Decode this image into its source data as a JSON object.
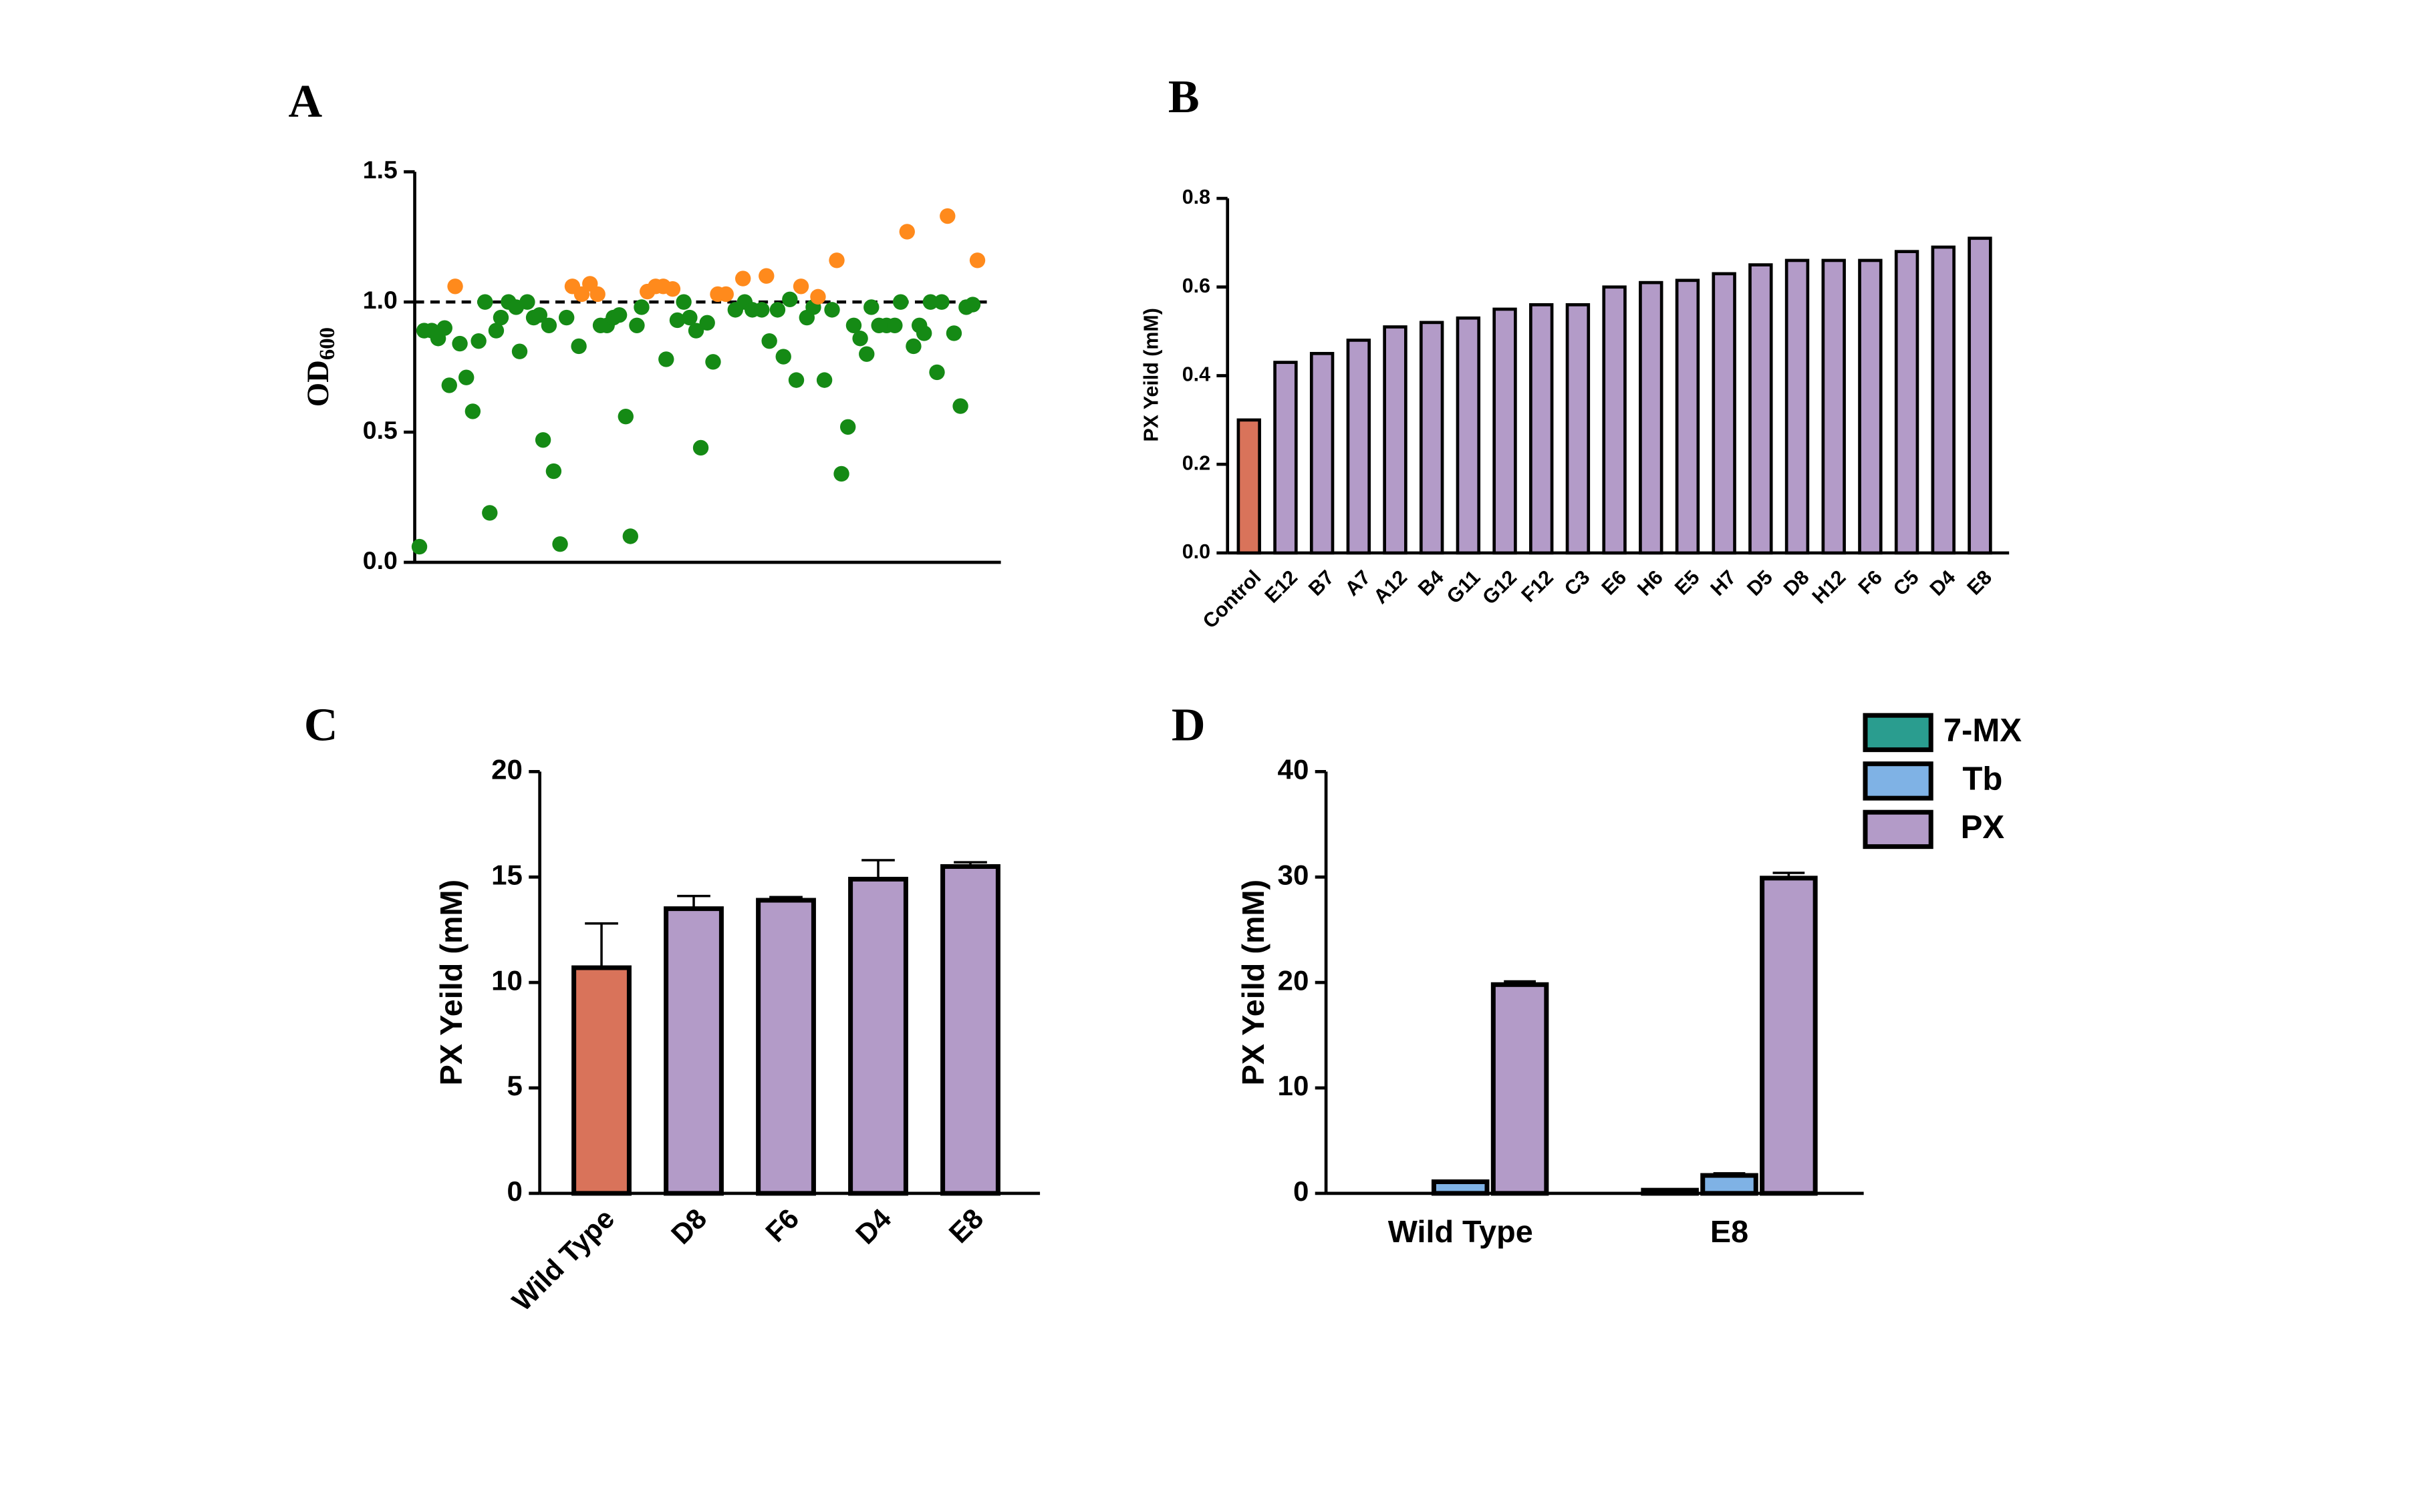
{
  "chart_data": [
    {
      "type": "scatter",
      "panel_label": "A",
      "y_label": "OD",
      "y_label_sub": "600",
      "xlim": [
        0,
        100
      ],
      "ylim": [
        0,
        1.5
      ],
      "yticks": [
        {
          "value": 0,
          "label": "0.0"
        },
        0.5,
        {
          "value": 1,
          "label": "1.0"
        },
        1.5
      ],
      "hline": 1,
      "series": [
        {
          "color": "#158a15",
          "x": [
            0.8,
            1.6,
            2.9,
            4.0,
            5.1,
            5.9,
            7.7,
            8.8,
            9.9,
            10.9,
            12.0,
            12.8,
            13.9,
            14.7,
            16.0,
            17.3,
            17.9,
            19.2,
            20.3,
            21.3,
            21.9,
            22.9,
            23.7,
            24.8,
            25.9,
            28.0,
            31.7,
            32.8,
            33.9,
            34.9,
            36.0,
            36.8,
            37.9,
            38.7,
            42.9,
            44.8,
            45.9,
            46.9,
            48.0,
            48.8,
            49.9,
            50.9,
            54.7,
            56.3,
            57.6,
            59.2,
            60.5,
            61.9,
            62.9,
            64.0,
            65.1,
            66.9,
            68.0,
            69.9,
            71.2,
            72.8,
            73.9,
            74.9,
            76.0,
            77.1,
            77.9,
            79.2,
            80.5,
            81.9,
            82.9,
            85.1,
            86.1,
            86.9,
            88.0,
            89.1,
            89.9,
            92.0,
            93.1,
            94.1,
            95.2
          ],
          "values": [
            0.06,
            0.89,
            0.89,
            0.86,
            0.9,
            0.68,
            0.84,
            0.71,
            0.58,
            0.85,
            1.0,
            0.19,
            0.89,
            0.94,
            1.0,
            0.98,
            0.81,
            1.0,
            0.94,
            0.95,
            0.47,
            0.91,
            0.35,
            0.07,
            0.94,
            0.83,
            0.91,
            0.91,
            0.94,
            0.95,
            0.56,
            0.1,
            0.91,
            0.98,
            0.78,
            0.93,
            1.0,
            0.94,
            0.89,
            0.44,
            0.92,
            0.77,
            0.97,
            1.0,
            0.97,
            0.97,
            0.85,
            0.97,
            0.79,
            1.01,
            0.7,
            0.94,
            0.98,
            0.7,
            0.97,
            0.34,
            0.52,
            0.91,
            0.86,
            0.8,
            0.98,
            0.91,
            0.91,
            0.91,
            1.0,
            0.83,
            0.91,
            0.88,
            1.0,
            0.73,
            1.0,
            0.88,
            0.6,
            0.98,
            0.99
          ]
        },
        {
          "color": "#ff8a1c",
          "x": [
            6.9,
            26.9,
            28.5,
            29.9,
            31.2,
            39.7,
            41.1,
            42.4,
            44.0,
            51.7,
            53.1,
            56.0,
            60.0,
            65.9,
            68.8,
            72.0,
            84.0,
            90.9,
            96.0
          ],
          "values": [
            1.06,
            1.06,
            1.03,
            1.07,
            1.03,
            1.04,
            1.06,
            1.06,
            1.05,
            1.03,
            1.03,
            1.09,
            1.1,
            1.06,
            1.02,
            1.16,
            1.27,
            1.33,
            1.16
          ]
        }
      ]
    },
    {
      "type": "bar",
      "panel_label": "B",
      "y_label": "PX Yeild (mM)",
      "categories": [
        "Control",
        "E12",
        "B7",
        "A7",
        "A12",
        "B4",
        "G11",
        "G12",
        "F12",
        "C3",
        "E6",
        "H6",
        "E5",
        "H7",
        "D5",
        "D8",
        "H12",
        "F6",
        "C5",
        "D4",
        "E8"
      ],
      "values": [
        0.3,
        0.43,
        0.45,
        0.48,
        0.51,
        0.52,
        0.53,
        0.55,
        0.56,
        0.56,
        0.6,
        0.61,
        0.615,
        0.63,
        0.65,
        0.66,
        0.66,
        0.66,
        0.68,
        0.69,
        0.71
      ],
      "colors": [
        "#d9735a",
        "#b39bc8",
        "#b39bc8",
        "#b39bc8",
        "#b39bc8",
        "#b39bc8",
        "#b39bc8",
        "#b39bc8",
        "#b39bc8",
        "#b39bc8",
        "#b39bc8",
        "#b39bc8",
        "#b39bc8",
        "#b39bc8",
        "#b39bc8",
        "#b39bc8",
        "#b39bc8",
        "#b39bc8",
        "#b39bc8",
        "#b39bc8",
        "#b39bc8"
      ],
      "ylim": [
        0,
        0.8
      ],
      "yticks": [
        {
          "value": 0,
          "label": "0.0"
        },
        0.2,
        0.4,
        0.6,
        0.8
      ]
    },
    {
      "type": "bar",
      "panel_label": "C",
      "y_label": "PX Yeild (mM)",
      "categories": [
        "Wild Type",
        "D8",
        "F6",
        "D4",
        "E8"
      ],
      "values": [
        10.7,
        13.5,
        13.9,
        14.9,
        15.5
      ],
      "errors": [
        2.1,
        0.6,
        0.15,
        0.9,
        0.2
      ],
      "colors": [
        "#d9735a",
        "#b39bc8",
        "#b39bc8",
        "#b39bc8",
        "#b39bc8"
      ],
      "ylim": [
        0,
        20
      ],
      "yticks": [
        0,
        5,
        10,
        15,
        20
      ]
    },
    {
      "type": "bar",
      "panel_label": "D",
      "y_label": "PX Yeild (mM)",
      "categories": [
        "Wild Type",
        "E8"
      ],
      "series": [
        {
          "name": "7-MX",
          "color": "#2a9d8f",
          "values": [
            0,
            0.3
          ],
          "errors": [
            0,
            0.05
          ]
        },
        {
          "name": "Tb",
          "color": "#7fb2e5",
          "values": [
            1.1,
            1.7
          ],
          "errors": [
            0.1,
            0.2
          ]
        },
        {
          "name": "PX",
          "color": "#b39bc8",
          "values": [
            19.8,
            29.9
          ],
          "errors": [
            0.3,
            0.5
          ]
        }
      ],
      "ylim": [
        0,
        40
      ],
      "yticks": [
        0,
        10,
        20,
        30,
        40
      ]
    }
  ]
}
